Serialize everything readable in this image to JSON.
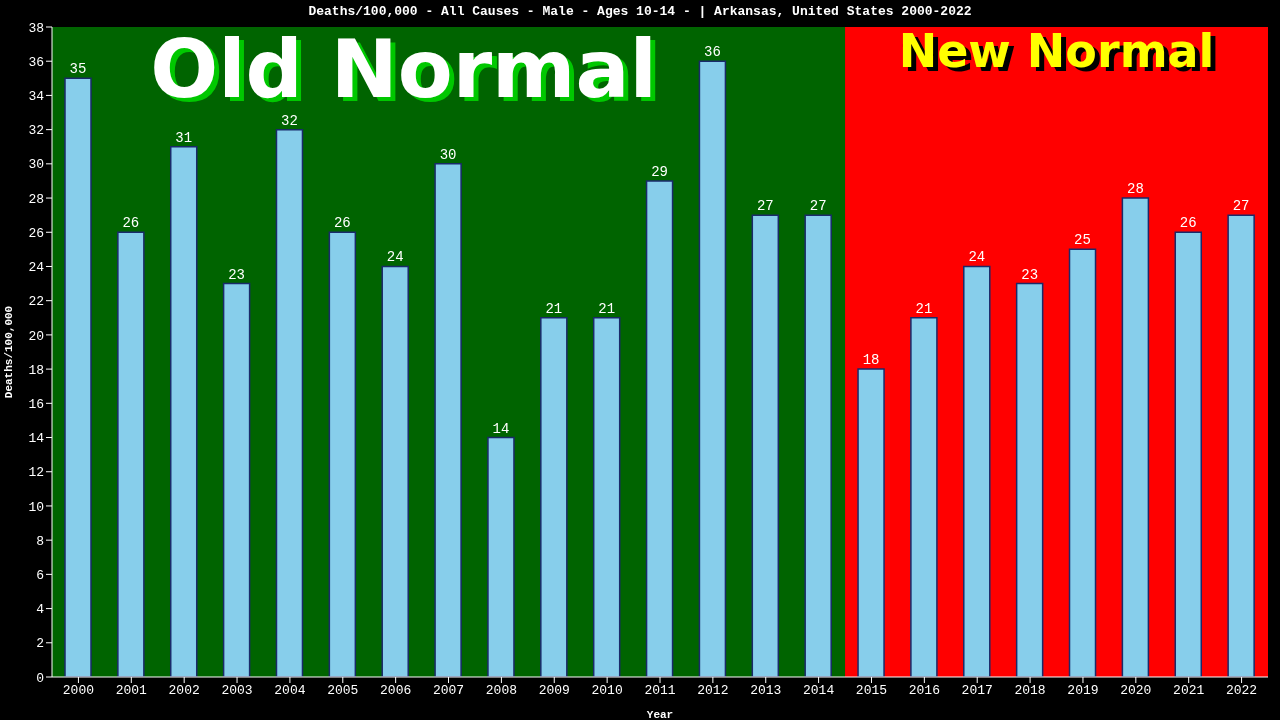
{
  "chart_data": {
    "type": "bar",
    "title": "Deaths/100,000 - All Causes - Male - Ages 10-14 -  | Arkansas, United States 2000-2022",
    "xlabel": "Year",
    "ylabel": "Deaths/100,000",
    "categories": [
      "2000",
      "2001",
      "2002",
      "2003",
      "2004",
      "2005",
      "2006",
      "2007",
      "2008",
      "2009",
      "2010",
      "2011",
      "2012",
      "2013",
      "2014",
      "2015",
      "2016",
      "2017",
      "2018",
      "2019",
      "2020",
      "2021",
      "2022"
    ],
    "values": [
      35,
      26,
      31,
      23,
      32,
      26,
      24,
      30,
      14,
      21,
      21,
      29,
      36,
      27,
      27,
      18,
      21,
      24,
      23,
      25,
      28,
      26,
      27
    ],
    "color": "#87ceeb",
    "ylim": [
      0,
      38
    ],
    "yticks": [
      0,
      2,
      4,
      6,
      8,
      10,
      12,
      14,
      16,
      18,
      20,
      22,
      24,
      26,
      28,
      30,
      32,
      34,
      36,
      38
    ],
    "grid": false,
    "legend": false,
    "data_labels": true,
    "bands": [
      {
        "axis": "x",
        "from": "2000",
        "to": "2014",
        "label": "Old Normal",
        "color": "#006400"
      },
      {
        "axis": "x",
        "from": "2015",
        "to": "2022",
        "label": "New Normal",
        "color": "#ff0000"
      }
    ]
  }
}
